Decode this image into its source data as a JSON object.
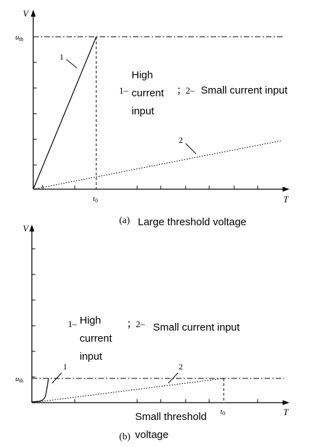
{
  "chart_data": [
    {
      "type": "line",
      "panel_label": "(a)",
      "caption": "Large threshold voltage",
      "ylabel": "V",
      "xlabel": "T",
      "threshold_label": "u",
      "threshold_subscript": "th",
      "t0_label": "t",
      "t0_subscript": "0",
      "xlim": [
        0,
        1
      ],
      "ylim": [
        0,
        1
      ],
      "threshold_value": 1.0,
      "t0_value": 0.26,
      "series": [
        {
          "name": "1",
          "style": "solid",
          "x": [
            0,
            0.26
          ],
          "y": [
            0,
            1.0
          ]
        },
        {
          "name": "2",
          "style": "dotted",
          "x": [
            0,
            1.0
          ],
          "y": [
            0,
            0.32
          ]
        }
      ],
      "legend": {
        "item1_num": "1–",
        "item1_text": [
          "High",
          "current",
          "input"
        ],
        "sep": "；2–",
        "item2_text": "Small current input"
      }
    },
    {
      "type": "line",
      "panel_label": "(b)",
      "caption_lines": [
        "Small threshold",
        "voltage"
      ],
      "ylabel": "V",
      "xlabel": "T",
      "threshold_label": "u",
      "threshold_subscript": "th",
      "t0_label": "t",
      "t0_subscript": "0",
      "xlim": [
        0,
        1
      ],
      "ylim": [
        0,
        1
      ],
      "threshold_value": 0.15,
      "t0_value": 0.76,
      "series": [
        {
          "name": "1",
          "style": "solid",
          "x": [
            0,
            0.04,
            0.06,
            0.07
          ],
          "y": [
            0,
            0.01,
            0.05,
            0.15
          ]
        },
        {
          "name": "2",
          "style": "dotted",
          "x": [
            0,
            0.76
          ],
          "y": [
            0,
            0.15
          ]
        }
      ],
      "legend": {
        "item1_num": "1–",
        "item1_text": [
          "High",
          "current",
          "input"
        ],
        "sep": "；2–",
        "item2_text": "Small current input"
      }
    }
  ]
}
